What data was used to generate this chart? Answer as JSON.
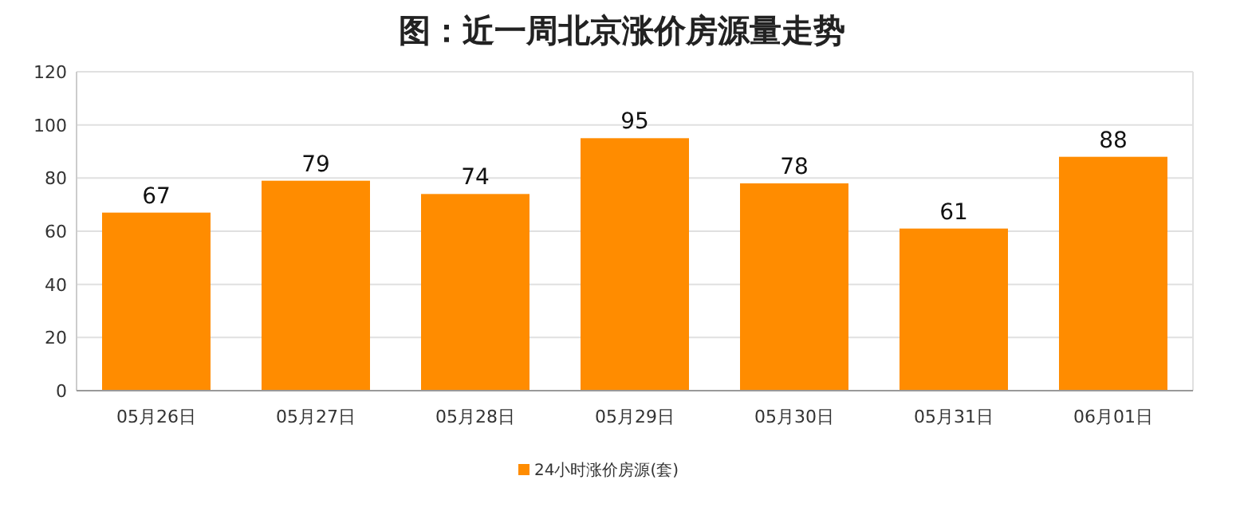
{
  "chart_data": {
    "type": "bar",
    "title": "图：近一周北京涨价房源量走势",
    "categories": [
      "05月26日",
      "05月27日",
      "05月28日",
      "05月29日",
      "05月30日",
      "05月31日",
      "06月01日"
    ],
    "series": [
      {
        "name": "24小时涨价房源(套)",
        "color": "#ff8c00",
        "values": [
          67,
          79,
          74,
          95,
          78,
          61,
          88
        ]
      }
    ],
    "ylim": [
      0,
      120
    ],
    "yticks": [
      0,
      20,
      40,
      60,
      80,
      100,
      120
    ],
    "grid": "y",
    "legend": "bottom",
    "data_labels": true
  }
}
